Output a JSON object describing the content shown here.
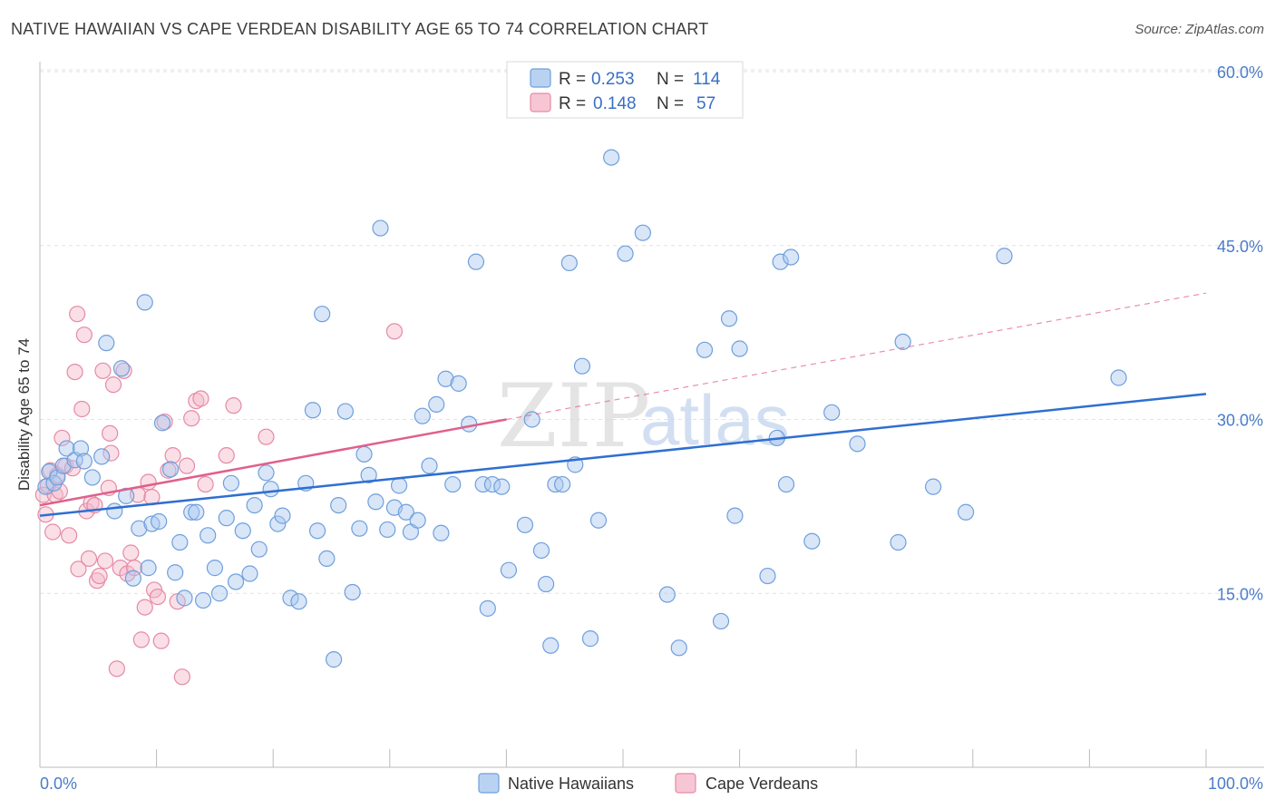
{
  "title": "NATIVE HAWAIIAN VS CAPE VERDEAN DISABILITY AGE 65 TO 74 CORRELATION CHART",
  "source": "Source: ZipAtlas.com",
  "watermark": {
    "zip": "ZIP",
    "atlas": "atlas"
  },
  "colors": {
    "blue_fill": "#a9c7ef",
    "blue_stroke": "#6f9fdc",
    "blue_line": "#2f6fd0",
    "pink_fill": "#f5b8ca",
    "pink_stroke": "#e58aa6",
    "pink_line": "#e0608a",
    "grid": "#e2e2e2",
    "tick_text": "#4a7cc9"
  },
  "legend": {
    "rows": [
      {
        "r_label": "R =",
        "r_value": "0.253",
        "n_label": "N =",
        "n_value": "114"
      },
      {
        "r_label": "R =",
        "r_value": "0.148",
        "n_label": "N =",
        "n_value": "57"
      }
    ]
  },
  "chart_data": {
    "type": "scatter",
    "title": "NATIVE HAWAIIAN VS CAPE VERDEAN DISABILITY AGE 65 TO 74 CORRELATION CHART",
    "xlabel": "",
    "ylabel": "Disability Age 65 to 74",
    "xlim": [
      0,
      100
    ],
    "ylim": [
      0,
      60
    ],
    "x_tick_labels": [
      "0.0%",
      "100.0%"
    ],
    "y_ticks": [
      15,
      30,
      45,
      60
    ],
    "y_tick_labels": [
      "15.0%",
      "30.0%",
      "45.0%",
      "60.0%"
    ],
    "legend_position": "top-center",
    "series": [
      {
        "name": "Native Hawaiians",
        "r": 0.253,
        "n": 114,
        "trend": {
          "x": [
            0,
            100
          ],
          "y": [
            21.7,
            32.2
          ],
          "dashed_extension": false
        },
        "points": [
          [
            0.5,
            24.2
          ],
          [
            0.8,
            25.5
          ],
          [
            1.2,
            24.5
          ],
          [
            1.5,
            25.0
          ],
          [
            2.0,
            26.0
          ],
          [
            2.3,
            27.5
          ],
          [
            3.0,
            26.5
          ],
          [
            3.5,
            27.5
          ],
          [
            3.8,
            26.4
          ],
          [
            4.5,
            25.0
          ],
          [
            5.3,
            26.8
          ],
          [
            5.7,
            36.6
          ],
          [
            6.4,
            22.1
          ],
          [
            7.0,
            34.4
          ],
          [
            7.4,
            23.4
          ],
          [
            8.0,
            16.3
          ],
          [
            8.5,
            20.6
          ],
          [
            9.0,
            40.1
          ],
          [
            9.3,
            17.2
          ],
          [
            9.6,
            21.0
          ],
          [
            10.2,
            21.2
          ],
          [
            10.5,
            29.7
          ],
          [
            11.2,
            25.7
          ],
          [
            11.6,
            16.8
          ],
          [
            12.0,
            19.4
          ],
          [
            12.4,
            14.6
          ],
          [
            13.0,
            22.0
          ],
          [
            13.4,
            22.0
          ],
          [
            14.0,
            14.4
          ],
          [
            14.4,
            20.0
          ],
          [
            15.0,
            17.2
          ],
          [
            15.4,
            15.0
          ],
          [
            16.0,
            21.5
          ],
          [
            16.4,
            24.5
          ],
          [
            16.8,
            16.0
          ],
          [
            17.4,
            20.4
          ],
          [
            18.0,
            16.7
          ],
          [
            18.4,
            22.6
          ],
          [
            18.8,
            18.8
          ],
          [
            19.4,
            25.4
          ],
          [
            19.8,
            24.0
          ],
          [
            20.4,
            21.0
          ],
          [
            20.8,
            21.7
          ],
          [
            21.5,
            14.6
          ],
          [
            22.2,
            14.3
          ],
          [
            22.8,
            24.5
          ],
          [
            23.4,
            30.8
          ],
          [
            23.8,
            20.4
          ],
          [
            24.2,
            39.1
          ],
          [
            24.6,
            18.0
          ],
          [
            25.2,
            9.3
          ],
          [
            25.6,
            22.6
          ],
          [
            26.2,
            30.7
          ],
          [
            26.8,
            15.1
          ],
          [
            27.4,
            20.6
          ],
          [
            27.8,
            27.0
          ],
          [
            28.2,
            25.2
          ],
          [
            28.8,
            22.9
          ],
          [
            29.2,
            46.5
          ],
          [
            29.8,
            20.5
          ],
          [
            30.4,
            22.4
          ],
          [
            30.8,
            24.3
          ],
          [
            31.4,
            22.0
          ],
          [
            31.8,
            20.3
          ],
          [
            32.4,
            21.3
          ],
          [
            32.8,
            30.3
          ],
          [
            33.4,
            26.0
          ],
          [
            34.0,
            31.3
          ],
          [
            34.4,
            20.2
          ],
          [
            34.8,
            33.5
          ],
          [
            35.4,
            24.4
          ],
          [
            35.9,
            33.1
          ],
          [
            36.8,
            29.6
          ],
          [
            37.4,
            43.6
          ],
          [
            38.0,
            24.4
          ],
          [
            38.4,
            13.7
          ],
          [
            38.8,
            24.4
          ],
          [
            39.6,
            24.2
          ],
          [
            40.2,
            17.0
          ],
          [
            41.6,
            20.9
          ],
          [
            42.2,
            30.0
          ],
          [
            43.0,
            18.7
          ],
          [
            43.4,
            15.8
          ],
          [
            43.8,
            10.5
          ],
          [
            44.2,
            24.4
          ],
          [
            44.8,
            24.4
          ],
          [
            45.4,
            43.5
          ],
          [
            45.9,
            26.1
          ],
          [
            46.5,
            34.6
          ],
          [
            47.2,
            11.1
          ],
          [
            47.9,
            21.3
          ],
          [
            49.0,
            52.6
          ],
          [
            50.2,
            44.3
          ],
          [
            51.7,
            46.1
          ],
          [
            53.8,
            14.9
          ],
          [
            54.8,
            10.3
          ],
          [
            57.0,
            36.0
          ],
          [
            58.4,
            12.6
          ],
          [
            59.1,
            38.7
          ],
          [
            59.6,
            21.7
          ],
          [
            60.0,
            36.1
          ],
          [
            62.4,
            16.5
          ],
          [
            63.2,
            28.4
          ],
          [
            63.5,
            43.6
          ],
          [
            64.0,
            24.4
          ],
          [
            64.4,
            44.0
          ],
          [
            66.2,
            19.5
          ],
          [
            67.9,
            30.6
          ],
          [
            70.1,
            27.9
          ],
          [
            73.6,
            19.4
          ],
          [
            74.0,
            36.7
          ],
          [
            76.6,
            24.2
          ],
          [
            79.4,
            22.0
          ],
          [
            82.7,
            44.1
          ],
          [
            92.5,
            33.6
          ]
        ]
      },
      {
        "name": "Cape Verdeans",
        "r": 0.148,
        "n": 57,
        "trend": {
          "x": [
            0,
            40
          ],
          "y": [
            22.6,
            30.0
          ],
          "dashed_to": [
            100,
            40.9
          ]
        },
        "points": [
          [
            0.3,
            23.5
          ],
          [
            0.5,
            21.8
          ],
          [
            0.7,
            24.3
          ],
          [
            0.9,
            25.6
          ],
          [
            1.1,
            20.3
          ],
          [
            1.3,
            23.5
          ],
          [
            1.5,
            25.2
          ],
          [
            1.7,
            23.8
          ],
          [
            1.9,
            28.4
          ],
          [
            2.2,
            26.0
          ],
          [
            2.5,
            20.0
          ],
          [
            2.8,
            25.8
          ],
          [
            3.0,
            34.1
          ],
          [
            3.2,
            39.1
          ],
          [
            3.3,
            17.1
          ],
          [
            3.6,
            30.9
          ],
          [
            3.8,
            37.3
          ],
          [
            4.0,
            22.1
          ],
          [
            4.2,
            18.0
          ],
          [
            4.4,
            22.8
          ],
          [
            4.7,
            22.6
          ],
          [
            4.9,
            16.1
          ],
          [
            5.1,
            16.5
          ],
          [
            5.4,
            34.2
          ],
          [
            5.6,
            17.8
          ],
          [
            5.9,
            24.1
          ],
          [
            6.0,
            28.8
          ],
          [
            6.1,
            27.1
          ],
          [
            6.3,
            33.0
          ],
          [
            6.6,
            8.5
          ],
          [
            6.9,
            17.2
          ],
          [
            7.2,
            34.2
          ],
          [
            7.5,
            16.7
          ],
          [
            7.8,
            18.5
          ],
          [
            8.1,
            17.2
          ],
          [
            8.4,
            23.5
          ],
          [
            8.7,
            11.0
          ],
          [
            9.0,
            13.8
          ],
          [
            9.3,
            24.6
          ],
          [
            9.6,
            23.3
          ],
          [
            9.8,
            15.3
          ],
          [
            10.1,
            14.7
          ],
          [
            10.4,
            10.9
          ],
          [
            10.7,
            29.8
          ],
          [
            11.0,
            25.6
          ],
          [
            11.4,
            26.9
          ],
          [
            11.8,
            14.3
          ],
          [
            12.2,
            7.8
          ],
          [
            12.6,
            26.0
          ],
          [
            13.0,
            30.1
          ],
          [
            13.4,
            31.6
          ],
          [
            13.8,
            31.8
          ],
          [
            14.2,
            24.4
          ],
          [
            16.0,
            26.9
          ],
          [
            16.6,
            31.2
          ],
          [
            19.4,
            28.5
          ],
          [
            30.4,
            37.6
          ]
        ]
      }
    ]
  },
  "bottom_legend": {
    "items": [
      {
        "label": "Native Hawaiians"
      },
      {
        "label": "Cape Verdeans"
      }
    ]
  }
}
